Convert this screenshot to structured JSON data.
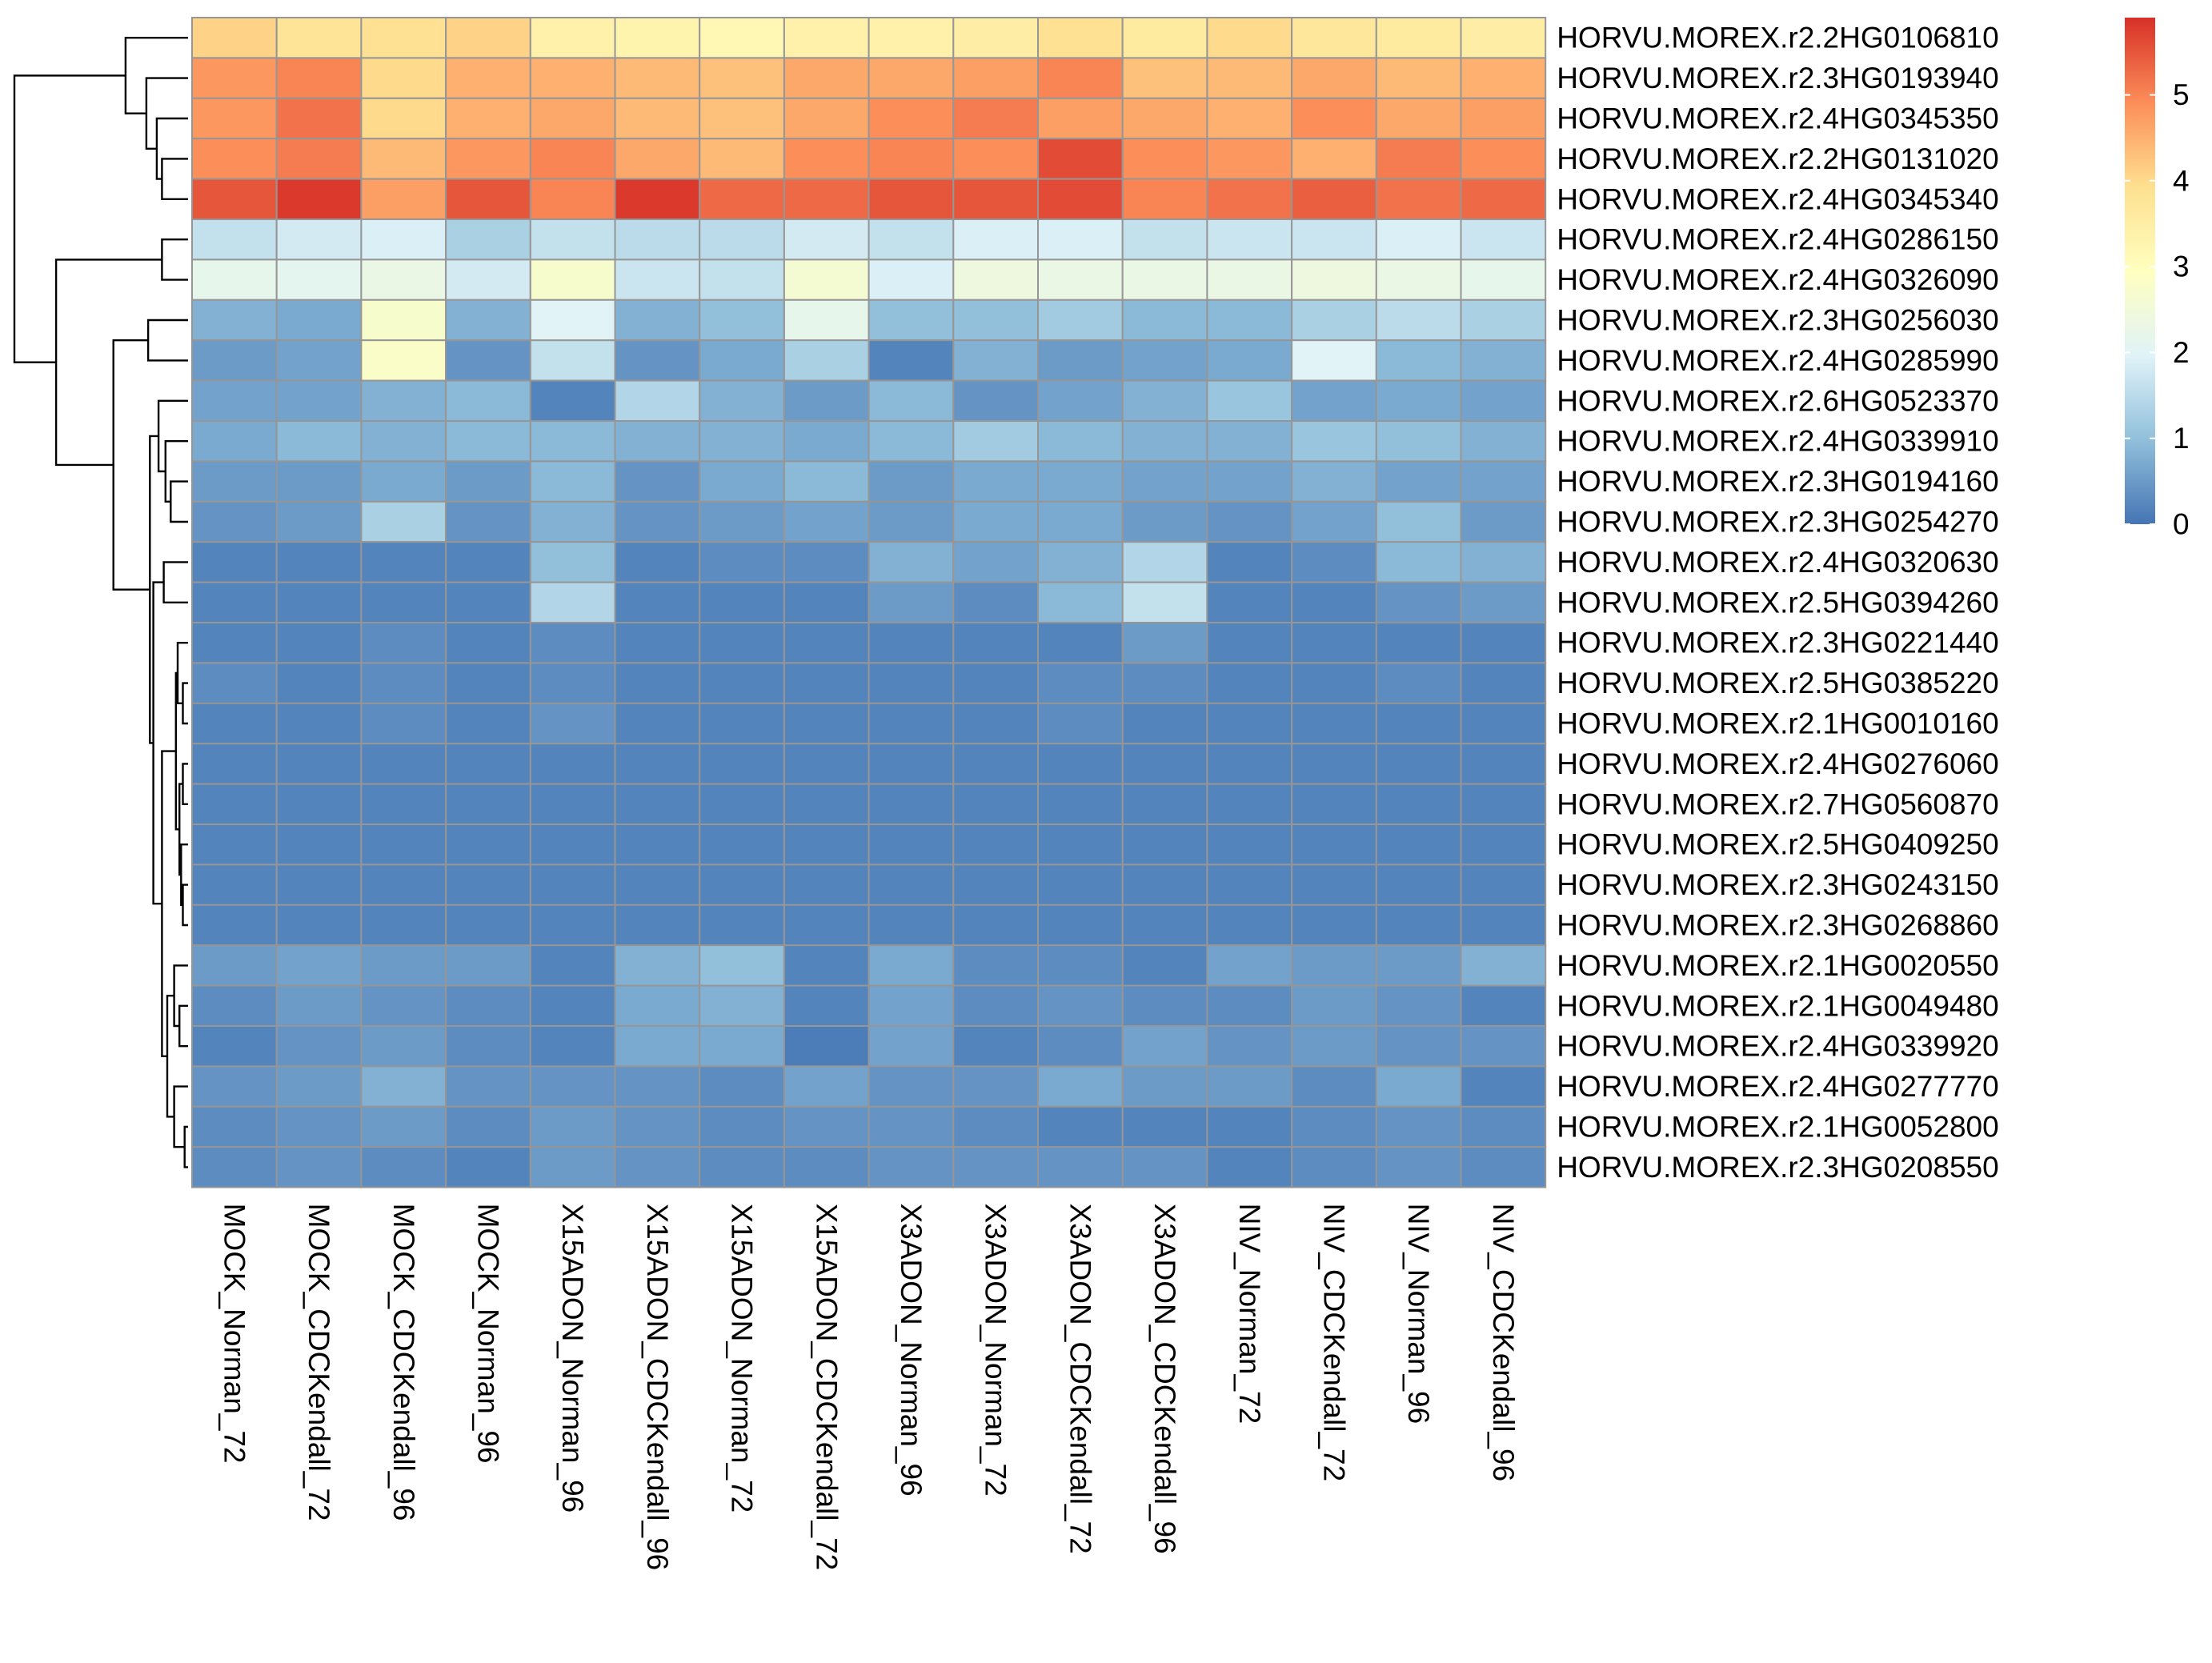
{
  "chart_data": {
    "type": "heatmap",
    "rows": [
      "HORVU.MOREX.r2.2HG0106810",
      "HORVU.MOREX.r2.3HG0193940",
      "HORVU.MOREX.r2.4HG0345350",
      "HORVU.MOREX.r2.2HG0131020",
      "HORVU.MOREX.r2.4HG0345340",
      "HORVU.MOREX.r2.4HG0286150",
      "HORVU.MOREX.r2.4HG0326090",
      "HORVU.MOREX.r2.3HG0256030",
      "HORVU.MOREX.r2.4HG0285990",
      "HORVU.MOREX.r2.6HG0523370",
      "HORVU.MOREX.r2.4HG0339910",
      "HORVU.MOREX.r2.3HG0194160",
      "HORVU.MOREX.r2.3HG0254270",
      "HORVU.MOREX.r2.4HG0320630",
      "HORVU.MOREX.r2.5HG0394260",
      "HORVU.MOREX.r2.3HG0221440",
      "HORVU.MOREX.r2.5HG0385220",
      "HORVU.MOREX.r2.1HG0010160",
      "HORVU.MOREX.r2.4HG0276060",
      "HORVU.MOREX.r2.7HG0560870",
      "HORVU.MOREX.r2.5HG0409250",
      "HORVU.MOREX.r2.3HG0243150",
      "HORVU.MOREX.r2.3HG0268860",
      "HORVU.MOREX.r2.1HG0020550",
      "HORVU.MOREX.r2.1HG0049480",
      "HORVU.MOREX.r2.4HG0339920",
      "HORVU.MOREX.r2.4HG0277770",
      "HORVU.MOREX.r2.1HG0052800",
      "HORVU.MOREX.r2.3HG0208550"
    ],
    "columns": [
      "MOCK_Norman_72",
      "MOCK_CDCKendall_72",
      "MOCK_CDCKendall_96",
      "MOCK_Norman_96",
      "X15ADON_Norman_96",
      "X15ADON_CDCKendall_96",
      "X15ADON_Norman_72",
      "X15ADON_CDCKendall_72",
      "X3ADON_Norman_96",
      "X3ADON_Norman_72",
      "X3ADON_CDCKendall_72",
      "X3ADON_CDCKendall_96",
      "NIV_Norman_72",
      "NIV_CDCKendall_72",
      "NIV_Norman_96",
      "NIV_CDCKendall_96"
    ],
    "values": [
      [
        4.1,
        3.8,
        3.9,
        4.1,
        3.4,
        3.3,
        3.2,
        3.4,
        3.4,
        3.5,
        3.9,
        3.6,
        4.0,
        3.7,
        3.6,
        3.5
      ],
      [
        4.8,
        5.0,
        4.0,
        4.5,
        4.5,
        4.4,
        4.3,
        4.6,
        4.6,
        4.7,
        5.0,
        4.3,
        4.4,
        4.6,
        4.4,
        4.5
      ],
      [
        4.8,
        5.2,
        4.0,
        4.5,
        4.6,
        4.4,
        4.3,
        4.6,
        4.9,
        5.1,
        4.7,
        4.6,
        4.5,
        4.9,
        4.6,
        4.7
      ],
      [
        4.9,
        5.1,
        4.4,
        4.8,
        5.0,
        4.6,
        4.4,
        4.9,
        5.0,
        4.9,
        5.6,
        4.9,
        4.8,
        4.5,
        5.1,
        4.9
      ],
      [
        5.5,
        5.8,
        4.7,
        5.5,
        5.0,
        5.8,
        5.3,
        5.3,
        5.5,
        5.5,
        5.6,
        5.0,
        5.2,
        5.4,
        5.2,
        5.3
      ],
      [
        1.6,
        1.8,
        1.9,
        1.3,
        1.6,
        1.5,
        1.5,
        1.8,
        1.6,
        1.9,
        1.9,
        1.6,
        1.7,
        1.7,
        1.9,
        1.7
      ],
      [
        2.2,
        2.1,
        2.3,
        1.8,
        2.7,
        1.7,
        1.6,
        2.6,
        1.9,
        2.4,
        2.3,
        2.3,
        2.3,
        2.4,
        2.3,
        2.2
      ],
      [
        0.8,
        0.7,
        2.7,
        0.8,
        2.0,
        0.8,
        1.0,
        2.2,
        1.0,
        1.0,
        1.2,
        0.9,
        0.9,
        1.3,
        1.5,
        1.3
      ],
      [
        0.5,
        0.6,
        2.8,
        0.4,
        1.6,
        0.4,
        0.7,
        1.3,
        0.2,
        0.8,
        0.5,
        0.6,
        0.7,
        2.0,
        0.9,
        0.8
      ],
      [
        0.6,
        0.6,
        0.8,
        0.9,
        0.2,
        1.4,
        0.8,
        0.5,
        0.9,
        0.4,
        0.6,
        0.8,
        1.1,
        0.6,
        0.7,
        0.6
      ],
      [
        0.7,
        0.9,
        0.8,
        0.9,
        0.9,
        0.8,
        0.8,
        0.7,
        0.9,
        1.2,
        0.9,
        0.8,
        0.8,
        1.1,
        1.0,
        0.8
      ],
      [
        0.5,
        0.5,
        0.7,
        0.5,
        0.9,
        0.4,
        0.7,
        0.9,
        0.5,
        0.7,
        0.7,
        0.6,
        0.6,
        0.8,
        0.6,
        0.6
      ],
      [
        0.4,
        0.5,
        1.3,
        0.4,
        0.8,
        0.4,
        0.5,
        0.6,
        0.5,
        0.7,
        0.7,
        0.5,
        0.4,
        0.6,
        1.0,
        0.5
      ],
      [
        0.2,
        0.2,
        0.2,
        0.2,
        1.0,
        0.2,
        0.3,
        0.3,
        0.8,
        0.6,
        0.8,
        1.4,
        0.2,
        0.3,
        0.9,
        0.8
      ],
      [
        0.2,
        0.2,
        0.2,
        0.2,
        1.4,
        0.2,
        0.2,
        0.2,
        0.5,
        0.3,
        0.9,
        1.6,
        0.2,
        0.2,
        0.4,
        0.5
      ],
      [
        0.2,
        0.2,
        0.3,
        0.2,
        0.3,
        0.2,
        0.2,
        0.2,
        0.2,
        0.2,
        0.2,
        0.5,
        0.2,
        0.2,
        0.2,
        0.2
      ],
      [
        0.3,
        0.2,
        0.3,
        0.2,
        0.3,
        0.2,
        0.2,
        0.2,
        0.2,
        0.2,
        0.3,
        0.3,
        0.2,
        0.2,
        0.3,
        0.2
      ],
      [
        0.2,
        0.2,
        0.3,
        0.2,
        0.4,
        0.2,
        0.2,
        0.2,
        0.2,
        0.2,
        0.3,
        0.2,
        0.2,
        0.2,
        0.2,
        0.2
      ],
      [
        0.2,
        0.2,
        0.2,
        0.2,
        0.2,
        0.2,
        0.2,
        0.2,
        0.2,
        0.2,
        0.2,
        0.2,
        0.2,
        0.2,
        0.2,
        0.2
      ],
      [
        0.2,
        0.2,
        0.2,
        0.2,
        0.2,
        0.2,
        0.2,
        0.2,
        0.2,
        0.2,
        0.2,
        0.2,
        0.2,
        0.2,
        0.2,
        0.2
      ],
      [
        0.2,
        0.2,
        0.2,
        0.2,
        0.2,
        0.2,
        0.2,
        0.2,
        0.2,
        0.2,
        0.2,
        0.2,
        0.2,
        0.2,
        0.2,
        0.2
      ],
      [
        0.2,
        0.2,
        0.2,
        0.2,
        0.2,
        0.2,
        0.2,
        0.2,
        0.2,
        0.2,
        0.2,
        0.2,
        0.2,
        0.2,
        0.2,
        0.2
      ],
      [
        0.2,
        0.2,
        0.2,
        0.2,
        0.2,
        0.2,
        0.2,
        0.2,
        0.2,
        0.2,
        0.2,
        0.2,
        0.2,
        0.2,
        0.2,
        0.2
      ],
      [
        0.5,
        0.6,
        0.5,
        0.5,
        0.2,
        0.8,
        1.0,
        0.2,
        0.7,
        0.3,
        0.3,
        0.2,
        0.6,
        0.5,
        0.5,
        0.8
      ],
      [
        0.3,
        0.5,
        0.4,
        0.3,
        0.2,
        0.7,
        0.8,
        0.2,
        0.6,
        0.3,
        0.4,
        0.3,
        0.3,
        0.5,
        0.4,
        0.2
      ],
      [
        0.2,
        0.4,
        0.5,
        0.3,
        0.2,
        0.7,
        0.7,
        0.1,
        0.6,
        0.2,
        0.3,
        0.6,
        0.4,
        0.5,
        0.4,
        0.4
      ],
      [
        0.4,
        0.5,
        0.8,
        0.4,
        0.4,
        0.4,
        0.3,
        0.6,
        0.4,
        0.4,
        0.7,
        0.5,
        0.5,
        0.3,
        0.7,
        0.2
      ],
      [
        0.3,
        0.4,
        0.5,
        0.3,
        0.5,
        0.4,
        0.3,
        0.4,
        0.4,
        0.3,
        0.2,
        0.2,
        0.2,
        0.3,
        0.4,
        0.3
      ],
      [
        0.3,
        0.4,
        0.3,
        0.2,
        0.5,
        0.4,
        0.3,
        0.3,
        0.4,
        0.4,
        0.4,
        0.4,
        0.2,
        0.3,
        0.4,
        0.3
      ]
    ],
    "colorbar": {
      "min": 0,
      "max": 5.9,
      "ticks": [
        0,
        1,
        2,
        3,
        4,
        5
      ],
      "colors": [
        "#4575b4",
        "#91bfdb",
        "#e0f3f8",
        "#ffffbf",
        "#fee090",
        "#fc8d59",
        "#d73027"
      ]
    },
    "cell_border_color": "#969696",
    "row_dendrogram": {
      "merges": [
        [
          -28,
          -29
        ],
        [
          -17,
          -18
        ],
        [
          -19,
          -20
        ],
        [
          -22,
          -23
        ],
        [
          -21,
          4
        ],
        [
          3,
          5
        ],
        [
          -16,
          2
        ],
        [
          7,
          6
        ],
        [
          -25,
          -26
        ],
        [
          -24,
          9
        ],
        [
          -27,
          1
        ],
        [
          10,
          11
        ],
        [
          8,
          12
        ],
        [
          -14,
          -15
        ],
        [
          13,
          14
        ],
        [
          -12,
          -13
        ],
        [
          -11,
          16
        ],
        [
          -10,
          17
        ],
        [
          18,
          15
        ],
        [
          -8,
          -9
        ],
        [
          20,
          19
        ],
        [
          -6,
          -7
        ],
        [
          22,
          21
        ],
        [
          -4,
          -5
        ],
        [
          -3,
          24
        ],
        [
          -2,
          25
        ],
        [
          -1,
          26
        ],
        [
          27,
          23
        ]
      ],
      "heights": [
        0.2,
        0.3,
        0.3,
        0.3,
        0.4,
        0.5,
        0.6,
        0.7,
        0.5,
        0.8,
        0.8,
        1.2,
        1.5,
        1.4,
        2.0,
        1.0,
        1.3,
        1.7,
        2.2,
        2.3,
        4.3,
        1.5,
        7.6,
        1.5,
        1.8,
        2.4,
        3.6,
        10.0
      ]
    }
  }
}
